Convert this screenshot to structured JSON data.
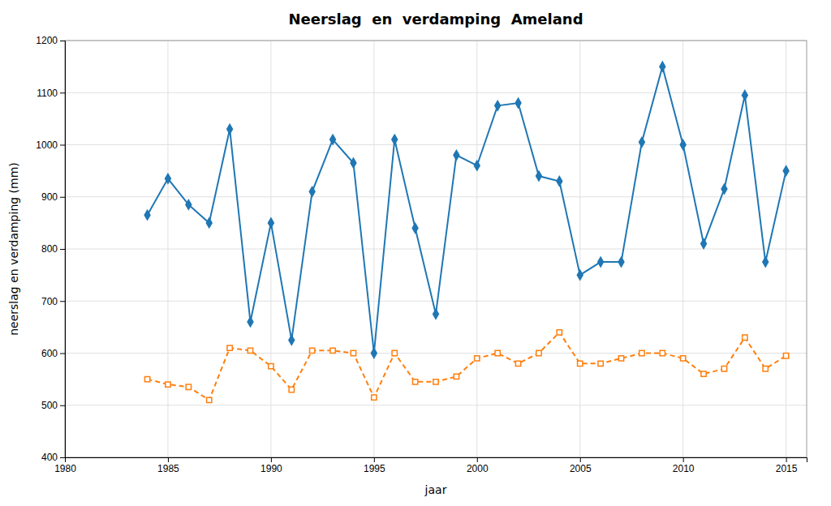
{
  "chart_data": {
    "type": "line",
    "title": "Neerslag  en  verdamping  Ameland",
    "xlabel": "jaar",
    "ylabel": "neerslag en verdamping (mm)",
    "x": [
      1984,
      1985,
      1986,
      1987,
      1988,
      1989,
      1990,
      1991,
      1992,
      1993,
      1994,
      1995,
      1996,
      1997,
      1998,
      1999,
      2000,
      2001,
      2002,
      2003,
      2004,
      2005,
      2006,
      2007,
      2008,
      2009,
      2010,
      2011,
      2012,
      2013,
      2014,
      2015
    ],
    "series": [
      {
        "values": [
          865,
          935,
          885,
          850,
          1030,
          660,
          850,
          625,
          910,
          1010,
          965,
          600,
          1010,
          840,
          675,
          980,
          960,
          1075,
          1080,
          940,
          930,
          750,
          775,
          775,
          1005,
          1150,
          1000,
          810,
          915,
          1095,
          775,
          950
        ],
        "marker": "diamond",
        "line_style": "solid"
      },
      {
        "values": [
          550,
          540,
          535,
          510,
          610,
          605,
          575,
          530,
          605,
          605,
          600,
          515,
          600,
          545,
          545,
          555,
          590,
          600,
          580,
          600,
          640,
          580,
          580,
          590,
          600,
          600,
          590,
          560,
          570,
          630,
          570,
          595
        ],
        "marker": "square",
        "line_style": "dashed"
      }
    ],
    "xlim": [
      1980,
      2016
    ],
    "xticks": [
      1980,
      1985,
      1990,
      1995,
      2000,
      2005,
      2010,
      2015
    ],
    "ylim": [
      400,
      1200
    ],
    "yticks": [
      400,
      500,
      600,
      700,
      800,
      900,
      1000,
      1100,
      1200
    ],
    "grid": true
  }
}
